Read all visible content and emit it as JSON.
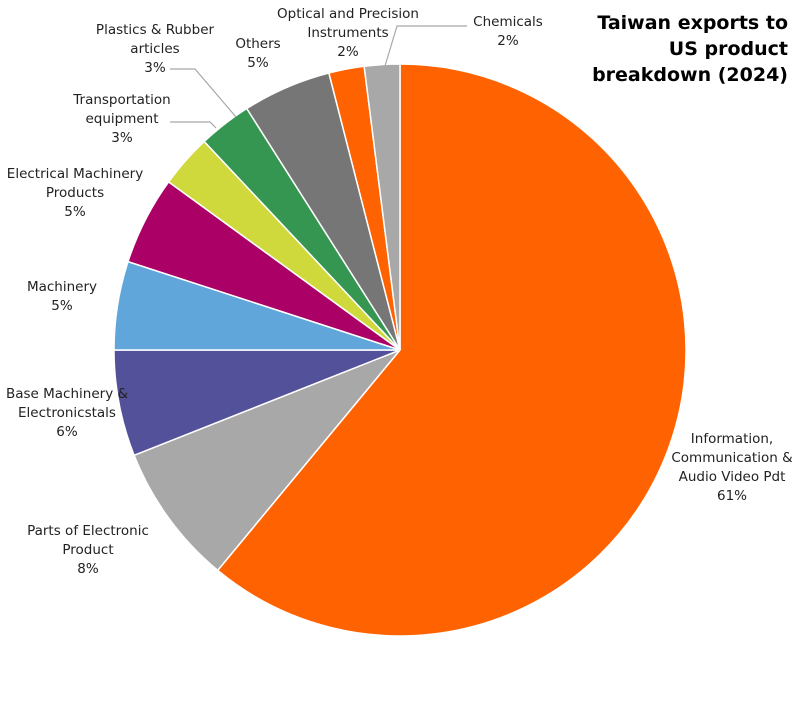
{
  "chart_data": {
    "type": "pie",
    "title": "Taiwan exports to US product breakdown (2024)",
    "unit": "%",
    "slices": [
      {
        "label": "Information, Communication & Audio Video Pdt",
        "value": 61,
        "value_label": "61%",
        "color": "#FF6200"
      },
      {
        "label": "Parts of Electronic Product",
        "value": 8,
        "value_label": "8%",
        "color": "#A8A8A8"
      },
      {
        "label": "Base Machinery & Electronicstals",
        "value": 6,
        "value_label": "6%",
        "color": "#525199"
      },
      {
        "label": "Machinery",
        "value": 5,
        "value_label": "5%",
        "color": "#60A6DA"
      },
      {
        "label": "Electrical Machinery Products",
        "value": 5,
        "value_label": "5%",
        "color": "#AB0066"
      },
      {
        "label": "Transportation equipment",
        "value": 3,
        "value_label": "3%",
        "color": "#D0D93C"
      },
      {
        "label": "Plastics & Rubber articles",
        "value": 3,
        "value_label": "3%",
        "color": "#349651"
      },
      {
        "label": "Others",
        "value": 5,
        "value_label": "5%",
        "color": "#767676"
      },
      {
        "label": "Optical and Precision Instruments",
        "value": 2,
        "value_label": "2%",
        "color": "#FF6200"
      },
      {
        "label": "Chemicals",
        "value": 2,
        "value_label": "2%",
        "color": "#A8A8A8"
      }
    ]
  }
}
